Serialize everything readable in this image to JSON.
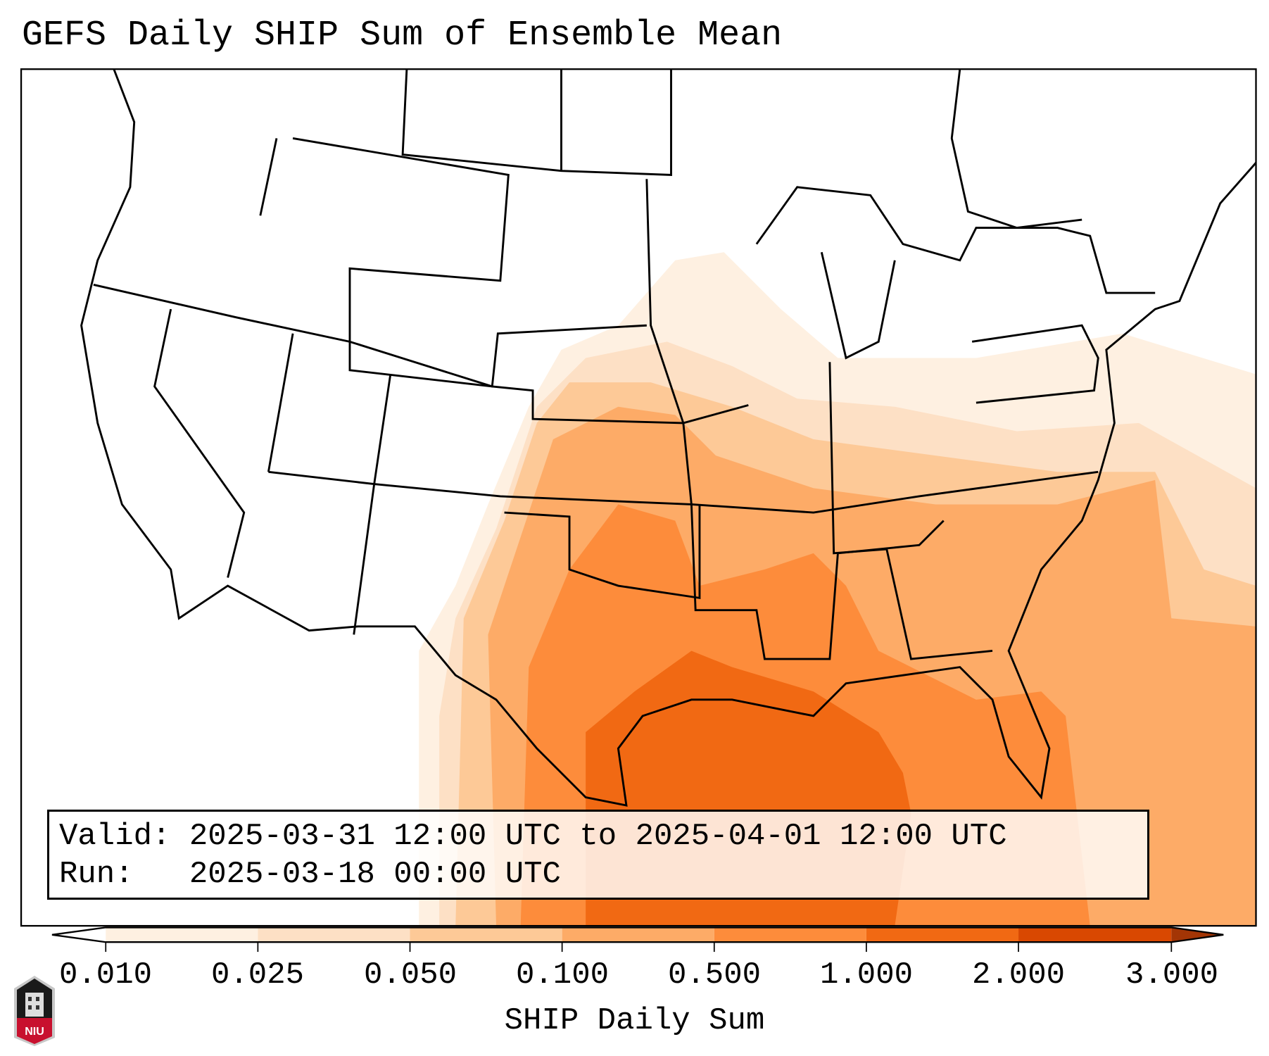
{
  "title": "GEFS Daily SHIP Sum of Ensemble Mean",
  "info": {
    "valid_label": "Valid:",
    "valid_value": "2025-03-31 12:00 UTC to 2025-04-01 12:00 UTC",
    "run_label": "Run:",
    "run_value": "2025-03-18 00:00 UTC"
  },
  "colorbar": {
    "label": "SHIP Daily Sum",
    "ticks": [
      "0.010",
      "0.025",
      "0.050",
      "0.100",
      "0.500",
      "1.000",
      "2.000",
      "3.000"
    ],
    "colors": [
      "#fef0e1",
      "#fde0c5",
      "#fdc997",
      "#fdab67",
      "#fd8c3b",
      "#f16913",
      "#d94801"
    ],
    "over_color": "#a33505",
    "under_color": "#ffffff"
  },
  "logo": {
    "text": "NIU"
  }
}
